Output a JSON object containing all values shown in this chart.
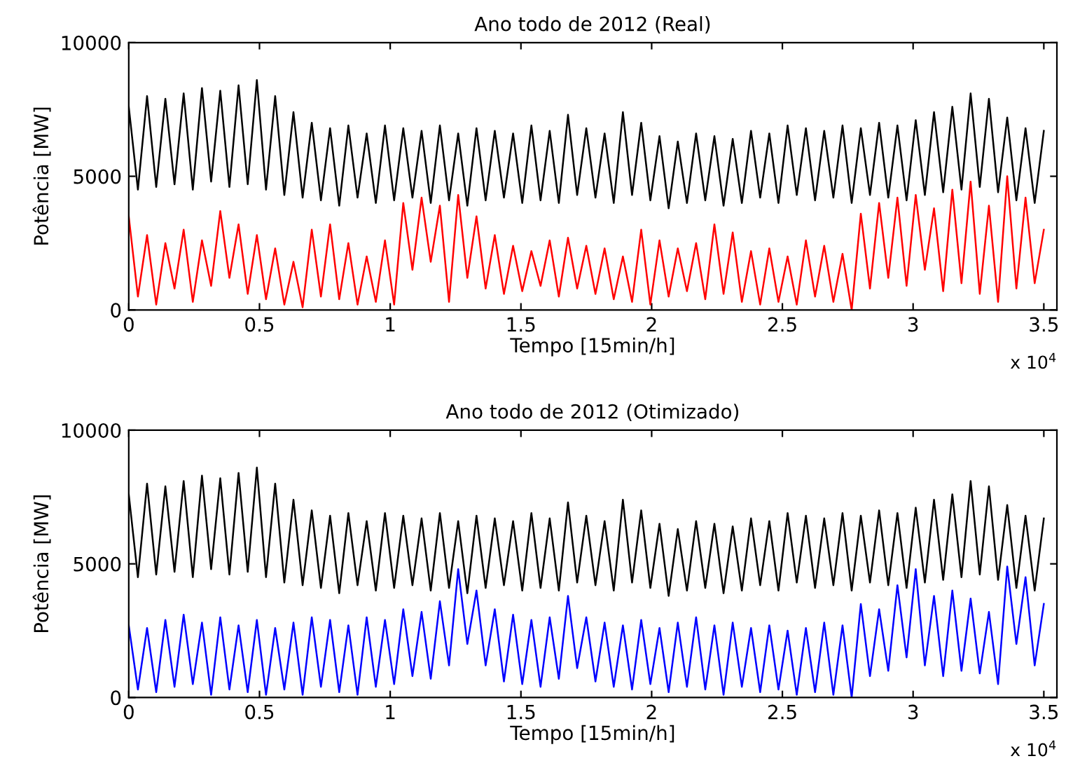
{
  "chart_data": [
    {
      "type": "line",
      "title": "Ano todo de 2012 (Real)",
      "xlabel": "Tempo [15min/h]",
      "ylabel": "Potência [MW]",
      "annotations": [
        "x 10$^{4}$"
      ],
      "x": [
        0,
        0.035,
        0.07,
        0.105,
        0.14,
        0.175,
        0.21,
        0.245,
        0.28,
        0.315,
        0.35,
        0.385,
        0.42,
        0.455,
        0.49,
        0.525,
        0.56,
        0.595,
        0.63,
        0.665,
        0.7,
        0.735,
        0.77,
        0.805,
        0.84,
        0.875,
        0.91,
        0.945,
        0.98,
        1.015,
        1.05,
        1.085,
        1.12,
        1.155,
        1.19,
        1.225,
        1.26,
        1.295,
        1.33,
        1.365,
        1.4,
        1.435,
        1.47,
        1.505,
        1.54,
        1.575,
        1.61,
        1.645,
        1.68,
        1.715,
        1.75,
        1.785,
        1.82,
        1.855,
        1.89,
        1.925,
        1.96,
        1.995,
        2.03,
        2.065,
        2.1,
        2.135,
        2.17,
        2.205,
        2.24,
        2.275,
        2.31,
        2.345,
        2.38,
        2.415,
        2.45,
        2.485,
        2.52,
        2.555,
        2.59,
        2.625,
        2.66,
        2.695,
        2.73,
        2.765,
        2.8,
        2.835,
        2.87,
        2.905,
        2.94,
        2.975,
        3.01,
        3.045,
        3.08,
        3.115,
        3.15,
        3.185,
        3.22,
        3.255,
        3.29,
        3.325,
        3.36,
        3.395,
        3.43,
        3.465,
        3.5
      ],
      "xlim": [
        0,
        3.55
      ],
      "ylim": [
        0,
        10000
      ],
      "xticks": [
        0,
        0.5,
        1,
        1.5,
        2,
        2.5,
        3,
        3.5
      ],
      "yticks": [
        0,
        5000,
        10000
      ],
      "grid": false,
      "series": [
        {
          "color": "#000000",
          "values": [
            7600,
            4500,
            8000,
            4600,
            7900,
            4700,
            8100,
            4500,
            8300,
            4800,
            8200,
            4600,
            8400,
            4700,
            8600,
            4500,
            8000,
            4300,
            7400,
            4200,
            7000,
            4100,
            6800,
            3900,
            6900,
            4200,
            6600,
            4000,
            6900,
            4100,
            6800,
            4200,
            6700,
            4000,
            6900,
            4100,
            6600,
            3900,
            6800,
            4100,
            6700,
            4200,
            6600,
            4000,
            6900,
            4100,
            6700,
            4000,
            7300,
            4300,
            6800,
            4200,
            6600,
            4000,
            7400,
            4300,
            7000,
            4100,
            6500,
            3800,
            6300,
            4000,
            6600,
            4100,
            6500,
            3900,
            6400,
            4000,
            6700,
            4200,
            6600,
            4000,
            6900,
            4300,
            6800,
            4100,
            6700,
            4200,
            6900,
            4000,
            6800,
            4300,
            7000,
            4200,
            6900,
            4100,
            7100,
            4300,
            7400,
            4400,
            7600,
            4500,
            8100,
            4600,
            7900,
            4400,
            7200,
            4100,
            6800,
            4000,
            6700
          ]
        },
        {
          "color": "#ff0000",
          "values": [
            3500,
            500,
            2800,
            200,
            2500,
            800,
            3000,
            300,
            2600,
            900,
            3700,
            1200,
            3200,
            600,
            2800,
            400,
            2300,
            200,
            1800,
            100,
            3000,
            500,
            3200,
            400,
            2500,
            200,
            2000,
            300,
            2600,
            200,
            4000,
            1500,
            4200,
            1800,
            3900,
            300,
            4300,
            1200,
            3500,
            800,
            2800,
            600,
            2400,
            700,
            2200,
            900,
            2600,
            500,
            2700,
            800,
            2400,
            600,
            2300,
            400,
            2000,
            300,
            3000,
            200,
            2600,
            500,
            2300,
            700,
            2500,
            400,
            3200,
            600,
            2900,
            300,
            2200,
            200,
            2300,
            300,
            2000,
            200,
            2600,
            500,
            2400,
            300,
            2100,
            0,
            3600,
            800,
            4000,
            1200,
            4200,
            900,
            4300,
            1500,
            3800,
            700,
            4500,
            1000,
            4800,
            600,
            3900,
            300,
            5000,
            800,
            4200,
            1000,
            3000
          ]
        }
      ]
    },
    {
      "type": "line",
      "title": "Ano todo de 2012 (Otimizado)",
      "xlabel": "Tempo [15min/h]",
      "ylabel": "Potência [MW]",
      "annotations": [
        "x 10$^{4}$"
      ],
      "x": [
        0,
        0.035,
        0.07,
        0.105,
        0.14,
        0.175,
        0.21,
        0.245,
        0.28,
        0.315,
        0.35,
        0.385,
        0.42,
        0.455,
        0.49,
        0.525,
        0.56,
        0.595,
        0.63,
        0.665,
        0.7,
        0.735,
        0.77,
        0.805,
        0.84,
        0.875,
        0.91,
        0.945,
        0.98,
        1.015,
        1.05,
        1.085,
        1.12,
        1.155,
        1.19,
        1.225,
        1.26,
        1.295,
        1.33,
        1.365,
        1.4,
        1.435,
        1.47,
        1.505,
        1.54,
        1.575,
        1.61,
        1.645,
        1.68,
        1.715,
        1.75,
        1.785,
        1.82,
        1.855,
        1.89,
        1.925,
        1.96,
        1.995,
        2.03,
        2.065,
        2.1,
        2.135,
        2.17,
        2.205,
        2.24,
        2.275,
        2.31,
        2.345,
        2.38,
        2.415,
        2.45,
        2.485,
        2.52,
        2.555,
        2.59,
        2.625,
        2.66,
        2.695,
        2.73,
        2.765,
        2.8,
        2.835,
        2.87,
        2.905,
        2.94,
        2.975,
        3.01,
        3.045,
        3.08,
        3.115,
        3.15,
        3.185,
        3.22,
        3.255,
        3.29,
        3.325,
        3.36,
        3.395,
        3.43,
        3.465,
        3.5
      ],
      "xlim": [
        0,
        3.55
      ],
      "ylim": [
        0,
        10000
      ],
      "xticks": [
        0,
        0.5,
        1,
        1.5,
        2,
        2.5,
        3,
        3.5
      ],
      "yticks": [
        0,
        5000,
        10000
      ],
      "grid": false,
      "series": [
        {
          "color": "#000000",
          "values": [
            7600,
            4500,
            8000,
            4600,
            7900,
            4700,
            8100,
            4500,
            8300,
            4800,
            8200,
            4600,
            8400,
            4700,
            8600,
            4500,
            8000,
            4300,
            7400,
            4200,
            7000,
            4100,
            6800,
            3900,
            6900,
            4200,
            6600,
            4000,
            6900,
            4100,
            6800,
            4200,
            6700,
            4000,
            6900,
            4100,
            6600,
            3900,
            6800,
            4100,
            6700,
            4200,
            6600,
            4000,
            6900,
            4100,
            6700,
            4000,
            7300,
            4300,
            6800,
            4200,
            6600,
            4000,
            7400,
            4300,
            7000,
            4100,
            6500,
            3800,
            6300,
            4000,
            6600,
            4100,
            6500,
            3900,
            6400,
            4000,
            6700,
            4200,
            6600,
            4000,
            6900,
            4300,
            6800,
            4100,
            6700,
            4200,
            6900,
            4000,
            6800,
            4300,
            7000,
            4200,
            6900,
            4100,
            7100,
            4300,
            7400,
            4400,
            7600,
            4500,
            8100,
            4600,
            7900,
            4400,
            7200,
            4100,
            6800,
            4000,
            6700
          ]
        },
        {
          "color": "#0000ff",
          "values": [
            2700,
            300,
            2600,
            200,
            2900,
            400,
            3100,
            500,
            2800,
            100,
            3000,
            300,
            2700,
            200,
            2900,
            100,
            2600,
            300,
            2800,
            100,
            3000,
            400,
            2900,
            200,
            2700,
            100,
            3000,
            400,
            2900,
            500,
            3300,
            800,
            3200,
            700,
            3600,
            1200,
            4800,
            2000,
            4000,
            1200,
            3300,
            600,
            3100,
            500,
            2900,
            400,
            3000,
            700,
            3800,
            1100,
            3000,
            600,
            2800,
            400,
            2700,
            300,
            2900,
            500,
            2600,
            200,
            2800,
            400,
            3000,
            300,
            2700,
            100,
            2800,
            400,
            2600,
            200,
            2700,
            300,
            2500,
            100,
            2600,
            200,
            2800,
            100,
            2700,
            0,
            3500,
            800,
            3300,
            1000,
            4200,
            1500,
            4800,
            1200,
            3800,
            800,
            4000,
            1000,
            3700,
            900,
            3200,
            500,
            4900,
            2000,
            4500,
            1200,
            3500
          ]
        }
      ]
    }
  ]
}
